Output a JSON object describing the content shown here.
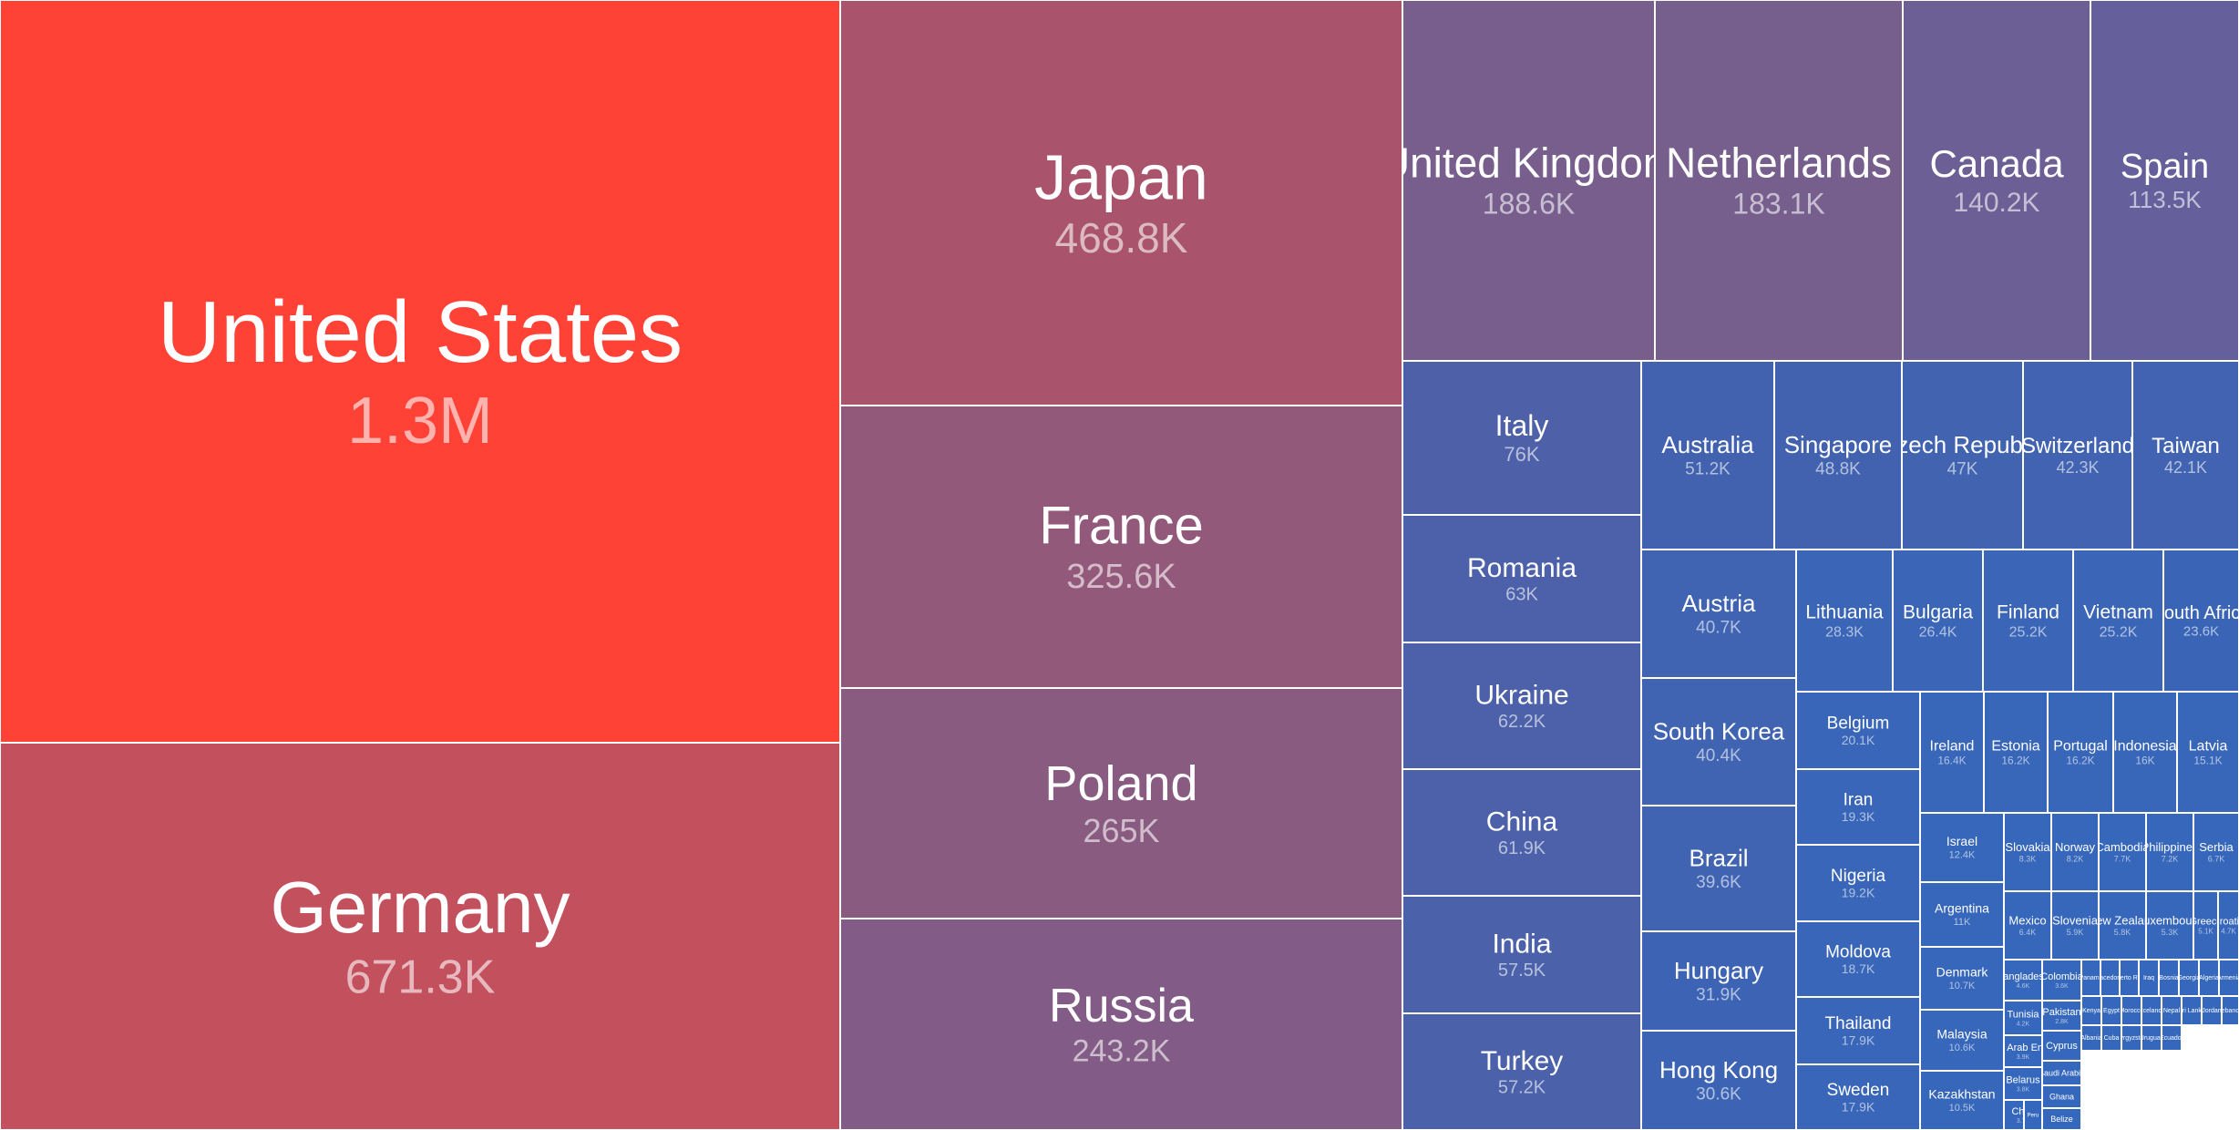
{
  "chart_data": {
    "type": "treemap",
    "value_unit": "",
    "items": [
      {
        "label": "United States",
        "value_label": "1.3M",
        "color": "#FF4136"
      },
      {
        "label": "Germany",
        "value_label": "671.3K",
        "color": "#C2505D"
      },
      {
        "label": "Japan",
        "value_label": "468.8K",
        "color": "#A9546C"
      },
      {
        "label": "France",
        "value_label": "325.6K",
        "color": "#93597A"
      },
      {
        "label": "Poland",
        "value_label": "265K",
        "color": "#895B81"
      },
      {
        "label": "Russia",
        "value_label": "243.2K",
        "color": "#825C86"
      },
      {
        "label": "United Kingdom",
        "value_label": "188.6K",
        "color": "#775E8C"
      },
      {
        "label": "Netherlands",
        "value_label": "183.1K",
        "color": "#765E8D"
      },
      {
        "label": "Canada",
        "value_label": "140.2K",
        "color": "#6C5F95"
      },
      {
        "label": "Spain",
        "value_label": "113.5K",
        "color": "#655F9B"
      },
      {
        "label": "Italy",
        "value_label": "76K",
        "color": "#4E60A8"
      },
      {
        "label": "Romania",
        "value_label": "63K",
        "color": "#4C61A9"
      },
      {
        "label": "Ukraine",
        "value_label": "62.2K",
        "color": "#4C61A9"
      },
      {
        "label": "China",
        "value_label": "61.9K",
        "color": "#4C61A9"
      },
      {
        "label": "India",
        "value_label": "57.5K",
        "color": "#4B61AA"
      },
      {
        "label": "Turkey",
        "value_label": "57.2K",
        "color": "#4B61AA"
      },
      {
        "label": "Australia",
        "value_label": "51.2K",
        "color": "#4262AF"
      },
      {
        "label": "Singapore",
        "value_label": "48.8K",
        "color": "#4262AF"
      },
      {
        "label": "Czech Republic",
        "value_label": "47K",
        "color": "#4163B0"
      },
      {
        "label": "Switzerland",
        "value_label": "42.3K",
        "color": "#4163B1"
      },
      {
        "label": "Taiwan",
        "value_label": "42.1K",
        "color": "#4163B1"
      },
      {
        "label": "Austria",
        "value_label": "40.7K",
        "color": "#4063B2"
      },
      {
        "label": "South Korea",
        "value_label": "40.4K",
        "color": "#4063B2"
      },
      {
        "label": "Brazil",
        "value_label": "39.6K",
        "color": "#4063B2"
      },
      {
        "label": "Hungary",
        "value_label": "31.9K",
        "color": "#3D64B4"
      },
      {
        "label": "Hong Kong",
        "value_label": "30.6K",
        "color": "#3D64B4"
      },
      {
        "label": "Lithuania",
        "value_label": "28.3K",
        "color": "#3B65B6"
      },
      {
        "label": "Bulgaria",
        "value_label": "26.4K",
        "color": "#3B65B6"
      },
      {
        "label": "Finland",
        "value_label": "25.2K",
        "color": "#3B65B6"
      },
      {
        "label": "Vietnam",
        "value_label": "25.2K",
        "color": "#3B65B6"
      },
      {
        "label": "South Africa",
        "value_label": "23.6K",
        "color": "#3A65B7"
      },
      {
        "label": "Belgium",
        "value_label": "20.1K",
        "color": "#3966B8"
      },
      {
        "label": "Iran",
        "value_label": "19.3K",
        "color": "#3966B8"
      },
      {
        "label": "Nigeria",
        "value_label": "19.2K",
        "color": "#3966B8"
      },
      {
        "label": "Moldova",
        "value_label": "18.7K",
        "color": "#3966B8"
      },
      {
        "label": "Thailand",
        "value_label": "17.9K",
        "color": "#3966B8"
      },
      {
        "label": "Sweden",
        "value_label": "17.9K",
        "color": "#3966B8"
      },
      {
        "label": "Ireland",
        "value_label": "16.4K",
        "color": "#3866B9"
      },
      {
        "label": "Estonia",
        "value_label": "16.2K",
        "color": "#3866B9"
      },
      {
        "label": "Portugal",
        "value_label": "16.2K",
        "color": "#3866B9"
      },
      {
        "label": "Indonesia",
        "value_label": "16K",
        "color": "#3866B9"
      },
      {
        "label": "Latvia",
        "value_label": "15.1K",
        "color": "#3866B9"
      },
      {
        "label": "Israel",
        "value_label": "12.4K",
        "color": "#3767BA"
      },
      {
        "label": "Argentina",
        "value_label": "11K",
        "color": "#3767BA"
      },
      {
        "label": "Denmark",
        "value_label": "10.7K",
        "color": "#3767BA"
      },
      {
        "label": "Malaysia",
        "value_label": "10.6K",
        "color": "#3767BA"
      },
      {
        "label": "Kazakhstan",
        "value_label": "10.5K",
        "color": "#3767BA"
      },
      {
        "label": "Slovakia",
        "value_label": "8.3K",
        "color": "#3667BB"
      },
      {
        "label": "Norway",
        "value_label": "8.2K",
        "color": "#3667BB"
      },
      {
        "label": "Cambodia",
        "value_label": "7.7K",
        "color": "#3667BB"
      },
      {
        "label": "Philippines",
        "value_label": "7.2K",
        "color": "#3667BB"
      },
      {
        "label": "Serbia",
        "value_label": "6.7K",
        "color": "#3667BB"
      },
      {
        "label": "Mexico",
        "value_label": "6.4K",
        "color": "#3667BB"
      },
      {
        "label": "Slovenia",
        "value_label": "5.9K",
        "color": "#3667BB"
      },
      {
        "label": "New Zealand",
        "value_label": "5.8K",
        "color": "#3667BB"
      },
      {
        "label": "Luxembourg",
        "value_label": "5.3K",
        "color": "#3667BB"
      },
      {
        "label": "Greece",
        "value_label": "5.1K",
        "color": "#3667BB"
      },
      {
        "label": "Croatia",
        "value_label": "4.7K",
        "color": "#3667BB"
      },
      {
        "label": "Bangladesh",
        "value_label": "4.6K",
        "color": "#3568BC"
      },
      {
        "label": "Colombia",
        "value_label": "3.6K",
        "color": "#3568BC"
      },
      {
        "label": "Tunisia",
        "value_label": "4.2K",
        "color": "#3568BC"
      },
      {
        "label": "Pakistan",
        "value_label": "2.8K",
        "color": "#3568BC"
      },
      {
        "label": "Cyprus",
        "value_label": "",
        "color": "#3568BC"
      },
      {
        "label": "United Arab Emirates",
        "value_label": "3.9K",
        "color": "#3568BC"
      },
      {
        "label": "Saudi Arabia",
        "value_label": "",
        "color": "#3568BC"
      },
      {
        "label": "Ghana",
        "value_label": "",
        "color": "#3568BC"
      },
      {
        "label": "Belarus",
        "value_label": "3.8K",
        "color": "#3568BC"
      },
      {
        "label": "Belize",
        "value_label": "",
        "color": "#3568BC"
      },
      {
        "label": "Chile",
        "value_label": "3.7K",
        "color": "#3568BC"
      },
      {
        "label": "Peru",
        "value_label": "",
        "color": "#3568BC"
      },
      {
        "label": "Panama",
        "value_label": "",
        "color": "#3568BC"
      },
      {
        "label": "Macedonia",
        "value_label": "",
        "color": "#3568BC"
      },
      {
        "label": "Puerto Rico",
        "value_label": "",
        "color": "#3568BC"
      },
      {
        "label": "Kenya",
        "value_label": "",
        "color": "#3568BC"
      },
      {
        "label": "Egypt",
        "value_label": "",
        "color": "#3568BC"
      },
      {
        "label": "Albania",
        "value_label": "",
        "color": "#3568BC"
      },
      {
        "label": "Cuba",
        "value_label": "",
        "color": "#3568BC"
      },
      {
        "label": "Iraq",
        "value_label": "",
        "color": "#3568BC"
      },
      {
        "label": "Bosnia",
        "value_label": "",
        "color": "#3568BC"
      },
      {
        "label": "Georgia",
        "value_label": "",
        "color": "#3568BC"
      },
      {
        "label": "Algeria",
        "value_label": "",
        "color": "#3568BC"
      },
      {
        "label": "Armenia",
        "value_label": "",
        "color": "#3568BC"
      },
      {
        "label": "Morocco",
        "value_label": "",
        "color": "#3568BC"
      },
      {
        "label": "Iceland",
        "value_label": "",
        "color": "#3568BC"
      },
      {
        "label": "Nepal",
        "value_label": "",
        "color": "#3568BC"
      },
      {
        "label": "Sri Lanka",
        "value_label": "",
        "color": "#3568BC"
      },
      {
        "label": "Jordan",
        "value_label": "",
        "color": "#3568BC"
      },
      {
        "label": "Lebanon",
        "value_label": "",
        "color": "#3568BC"
      },
      {
        "label": "Kyrgyzstan",
        "value_label": "",
        "color": "#3568BC"
      },
      {
        "label": "Uruguay",
        "value_label": "",
        "color": "#3568BC"
      },
      {
        "label": "Ecuador",
        "value_label": "",
        "color": "#3568BC"
      }
    ]
  }
}
